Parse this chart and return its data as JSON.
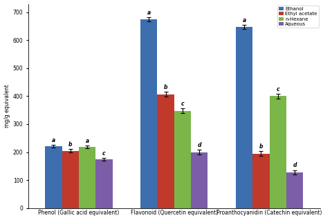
{
  "groups": [
    "Phenol (Gallic acid equivalent)",
    "Flavonoid (Quercetin equivalent)",
    "Proanthocyanidin (Catechin equivalent)"
  ],
  "bar_labels": [
    "Ethanol",
    "Ethyl acetate",
    "n-Hexane",
    "Aqueous"
  ],
  "bar_colors": [
    "#3d6faf",
    "#c0392b",
    "#7ab648",
    "#7b5ea7"
  ],
  "values": [
    [
      220,
      205,
      218,
      175
    ],
    [
      675,
      407,
      348,
      200
    ],
    [
      648,
      195,
      400,
      128
    ]
  ],
  "errors": [
    [
      5,
      5,
      5,
      5
    ],
    [
      8,
      8,
      8,
      8
    ],
    [
      8,
      8,
      8,
      8
    ]
  ],
  "letters": [
    [
      "a",
      "b",
      "a",
      "c"
    ],
    [
      "a",
      "b",
      "c",
      "d"
    ],
    [
      "a",
      "b",
      "c",
      "d"
    ]
  ],
  "ylabel": "mg/g equivalent",
  "ylim": [
    0,
    730
  ],
  "yticks": [
    0,
    100,
    200,
    300,
    400,
    500,
    600,
    700
  ],
  "background_color": "#ffffff"
}
